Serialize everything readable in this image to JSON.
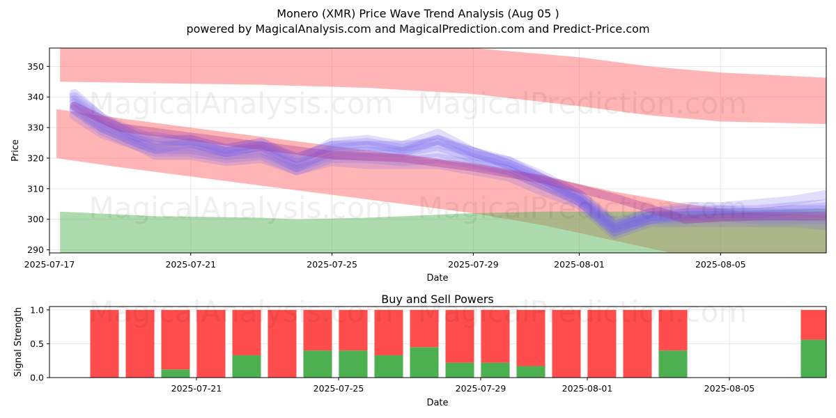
{
  "title_line1": "Monero (XMR) Price Wave Trend Analysis (Aug 05 )",
  "title_line2": "powered by MagicalAnalysis.com and MagicalPrediction.com and Predict-Price.com",
  "watermarks": [
    "MagicalAnalysis.com",
    "MagicalPrediction.com",
    "MagicalAnalysis.com",
    "MagicalPrediction.com",
    "MagicalAnalysis.com",
    "MagicalPrediction.com"
  ],
  "colors": {
    "red_band": "#ff6b6b",
    "green_band": "#5cb85c",
    "wave": "#7766ee",
    "wave_mid": "#aa3399",
    "sell": "#ff4d4d",
    "buy": "#4caf50"
  },
  "chart_data": [
    {
      "type": "area",
      "title": "Monero (XMR) Price Wave Trend Analysis (Aug 05 )",
      "xlabel": "Date",
      "ylabel": "Price",
      "xlim": [
        0,
        22.7
      ],
      "x_start_date": "2025-07-17",
      "ylim": [
        289,
        356
      ],
      "x_ticks": [
        {
          "x": 0,
          "label": "2025-07-17"
        },
        {
          "x": 4,
          "label": "2025-07-21"
        },
        {
          "x": 8,
          "label": "2025-07-25"
        },
        {
          "x": 12,
          "label": "2025-07-29"
        },
        {
          "x": 15,
          "label": "2025-08-01"
        },
        {
          "x": 19,
          "label": "2025-08-05"
        }
      ],
      "y_ticks": [
        290,
        300,
        310,
        320,
        330,
        340,
        350
      ],
      "bands": [
        {
          "name": "upper resistance band",
          "color": "#ff6b6b",
          "x": [
            0.3,
            3,
            6,
            9,
            12,
            15,
            17,
            19,
            22.5
          ],
          "upper": [
            356,
            356,
            356,
            356,
            356,
            353,
            350,
            348,
            346
          ],
          "lower": [
            345,
            344.5,
            344,
            343,
            341,
            337,
            334,
            332,
            331
          ]
        },
        {
          "name": "lower trend band",
          "color": "#ff6b6b",
          "x": [
            0.2,
            2,
            4,
            6,
            8,
            10,
            12,
            14,
            16,
            18,
            20,
            22.5
          ],
          "upper": [
            336,
            333,
            330,
            327,
            324,
            321,
            318,
            314,
            309,
            305,
            302,
            301
          ],
          "lower": [
            320,
            317,
            314,
            311,
            308,
            305,
            302,
            298,
            293,
            288,
            288,
            288
          ]
        },
        {
          "name": "support band",
          "color": "#5cb85c",
          "x": [
            0.3,
            3,
            6,
            7,
            9,
            10,
            12,
            14,
            16,
            18,
            20,
            22.5
          ],
          "upper": [
            302.5,
            301,
            300.5,
            300,
            300.5,
            301,
            302,
            302.5,
            302.5,
            302.5,
            303,
            303.5
          ],
          "lower": [
            288,
            288,
            288,
            288,
            288,
            288,
            288,
            288,
            288,
            288,
            288,
            288
          ]
        }
      ],
      "wave_series": [
        {
          "name": "wave 1",
          "x": [
            0.7,
            1.5,
            2.5,
            3,
            4,
            5,
            6,
            7,
            8,
            9,
            10,
            11,
            12,
            13,
            14,
            15,
            16,
            17,
            18,
            19,
            20,
            21,
            22
          ],
          "y": [
            339,
            332,
            327,
            327,
            325,
            322,
            324,
            320,
            324,
            324,
            324,
            325,
            322,
            318,
            313,
            307,
            297,
            301,
            301,
            302,
            302,
            302,
            302
          ]
        },
        {
          "name": "wave 2",
          "x": [
            0.7,
            1.5,
            2.5,
            3,
            4,
            5,
            6,
            7,
            8,
            9,
            10,
            11,
            12,
            13,
            14,
            15,
            16,
            17,
            18,
            19,
            20,
            21,
            22
          ],
          "y": [
            337,
            330,
            325,
            323,
            325,
            322,
            323,
            317,
            323,
            324,
            322,
            326,
            321,
            319,
            313,
            307,
            298,
            300,
            302,
            303,
            302,
            303,
            303
          ]
        },
        {
          "name": "wave 3",
          "x": [
            0.7,
            1.5,
            2.5,
            3,
            4,
            5,
            6,
            7,
            8,
            9,
            10,
            11,
            12,
            13,
            14,
            15,
            16,
            17,
            18,
            19,
            20,
            21,
            22
          ],
          "y": [
            341,
            333,
            327,
            325,
            326,
            323,
            325,
            319,
            325,
            326,
            324,
            328,
            322,
            319,
            314,
            308,
            299,
            302,
            304,
            304,
            305,
            306,
            308
          ]
        },
        {
          "name": "wave 4",
          "x": [
            0.7,
            1.5,
            2.5,
            3,
            4,
            5,
            6,
            7,
            8,
            9,
            10,
            11,
            12,
            13,
            14,
            15,
            16,
            17,
            18,
            19,
            20,
            21,
            22
          ],
          "y": [
            336,
            329,
            324,
            322,
            322,
            320,
            321,
            316,
            320,
            320,
            319,
            320,
            318,
            316,
            311,
            306,
            296,
            300,
            300,
            301,
            300,
            300,
            300
          ]
        },
        {
          "name": "wave 5",
          "x": [
            0.7,
            1.5,
            2.5,
            3,
            4,
            5,
            6,
            7,
            8,
            9,
            10,
            11,
            12,
            13,
            14,
            15,
            16,
            17,
            18,
            19,
            20,
            21,
            22
          ],
          "y": [
            338,
            331,
            326,
            324,
            324,
            322,
            324,
            318,
            322,
            322,
            322,
            324,
            320,
            317,
            312,
            306,
            297,
            301,
            302,
            302,
            302,
            303,
            304
          ]
        },
        {
          "name": "wave 6",
          "x": [
            0.7,
            1.5,
            2.5,
            3,
            4,
            5,
            6,
            7,
            8,
            9,
            10,
            11,
            12,
            13,
            14,
            15,
            16,
            17,
            18,
            19,
            20,
            21,
            22
          ],
          "y": [
            334,
            328,
            324,
            321,
            321,
            319,
            320,
            316,
            319,
            318,
            318,
            318,
            316,
            314,
            309,
            305,
            295,
            299,
            299,
            299,
            299,
            299,
            298
          ]
        },
        {
          "name": "wave 7",
          "x": [
            0.7,
            1.5,
            2.5,
            3,
            4,
            5,
            6,
            7,
            8,
            9,
            10,
            11,
            12,
            13,
            14,
            15,
            16,
            17,
            18,
            19,
            20,
            21,
            22
          ],
          "y": [
            340,
            333,
            328,
            326,
            326,
            323,
            325,
            320,
            324,
            325,
            323,
            326,
            322,
            318,
            313,
            308,
            298,
            302,
            303,
            303,
            303,
            304,
            305
          ]
        },
        {
          "name": "wave 8",
          "x": [
            0.7,
            1.5,
            2.5,
            3,
            4,
            5,
            6,
            7,
            8,
            9,
            10,
            11,
            12,
            13,
            14,
            15,
            16,
            17,
            18,
            19,
            20,
            21,
            22
          ],
          "y": [
            336,
            330,
            325,
            323,
            323,
            321,
            322,
            317,
            321,
            321,
            321,
            322,
            319,
            316,
            311,
            306,
            296,
            300,
            301,
            301,
            301,
            301,
            301
          ]
        }
      ],
      "trend_line": {
        "name": "mid trend",
        "color": "#aa3399",
        "x": [
          0.7,
          2,
          4,
          6,
          8,
          10,
          12,
          14,
          16,
          18,
          20,
          22
        ],
        "y": [
          337,
          330,
          327,
          324,
          321,
          320,
          317,
          313,
          307,
          300,
          301,
          301
        ]
      }
    },
    {
      "type": "bar",
      "title": "Buy and Sell Powers",
      "xlabel": "Date",
      "ylabel": "Signal Strength",
      "ylim": [
        0,
        1.05
      ],
      "y_ticks": [
        0.0,
        0.5,
        1.0
      ],
      "y_tick_labels": [
        "0.0",
        "0.5",
        "1.0"
      ],
      "x_ticks": [
        {
          "x": 4,
          "label": "2025-07-21"
        },
        {
          "x": 8,
          "label": "2025-07-25"
        },
        {
          "x": 12,
          "label": "2025-07-29"
        },
        {
          "x": 15,
          "label": "2025-08-01"
        },
        {
          "x": 19,
          "label": "2025-08-05"
        }
      ],
      "x": [
        1,
        2,
        3,
        4,
        5,
        6,
        7,
        8,
        9,
        10,
        11,
        12,
        13,
        14,
        15,
        16,
        17,
        18,
        21
      ],
      "series": [
        {
          "name": "Buy",
          "color": "#4caf50",
          "values": [
            0,
            0,
            0.12,
            0,
            0.33,
            0,
            0.4,
            0.4,
            0.33,
            0.45,
            0.22,
            0.22,
            0.17,
            0,
            0,
            0,
            0.4,
            0,
            0.56
          ]
        },
        {
          "name": "Sell",
          "color": "#ff4d4d",
          "values": [
            1,
            1,
            0.88,
            1,
            0.67,
            1,
            0.6,
            0.6,
            0.67,
            0.55,
            0.78,
            0.78,
            0.83,
            1,
            1,
            1,
            0.6,
            0,
            0.44
          ]
        }
      ]
    }
  ]
}
